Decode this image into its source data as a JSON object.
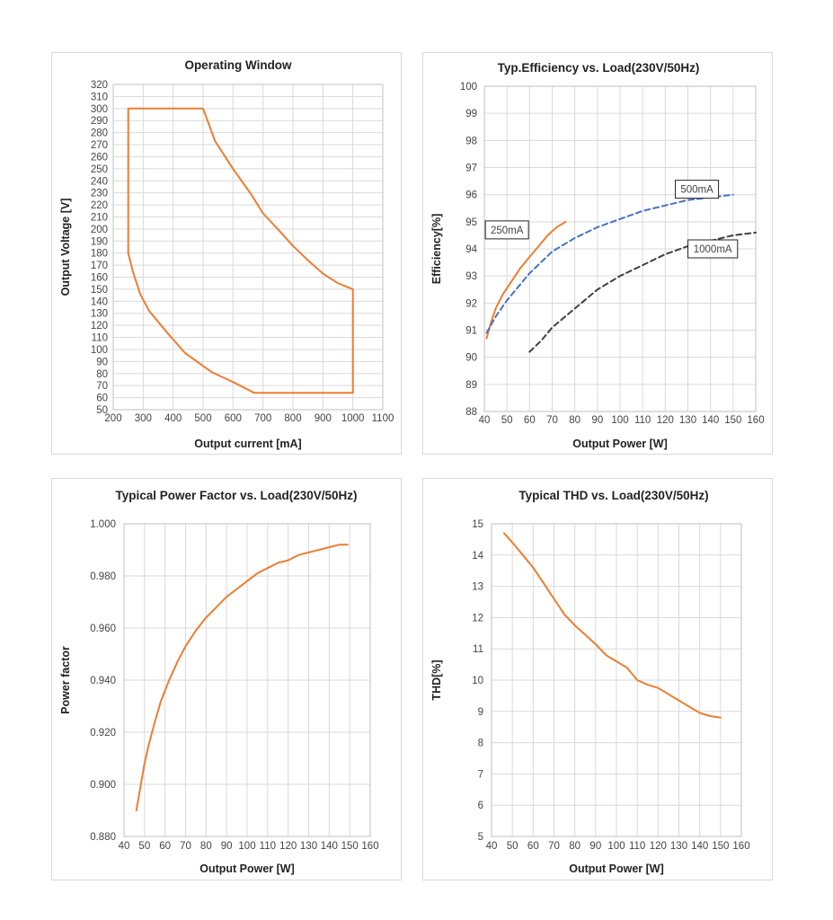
{
  "chart_data": [
    {
      "type": "line",
      "title": "Operating Window",
      "xlabel": "Output current [mA]",
      "ylabel": "Output Voltage [V]",
      "xlim": [
        200,
        1100
      ],
      "ylim": [
        50,
        320
      ],
      "xticks": [
        200,
        300,
        400,
        500,
        600,
        700,
        800,
        900,
        1000,
        1100
      ],
      "yticks": [
        50,
        60,
        70,
        80,
        90,
        100,
        110,
        120,
        130,
        140,
        150,
        160,
        170,
        180,
        190,
        200,
        210,
        220,
        230,
        240,
        250,
        260,
        270,
        280,
        290,
        300,
        310,
        320
      ],
      "grid": true,
      "series": [
        {
          "color": "#ED7D31",
          "dash": "solid",
          "x": [
            250,
            500,
            540,
            600,
            660,
            700,
            760,
            800,
            850,
            900,
            950,
            1000,
            1000,
            670,
            600,
            530,
            440,
            380,
            320,
            290,
            265,
            250,
            250
          ],
          "y": [
            300,
            300,
            273,
            250,
            229,
            213,
            197,
            186,
            174,
            163,
            155,
            150,
            64,
            64,
            73,
            81,
            97,
            114,
            132,
            146,
            165,
            180,
            300
          ]
        }
      ]
    },
    {
      "type": "line",
      "title": "Typ.Efficiency vs. Load(230V/50Hz)",
      "xlabel": "Output Power [W]",
      "ylabel": "Efficiency[%]",
      "xlim": [
        40,
        160
      ],
      "ylim": [
        88,
        100
      ],
      "xticks": [
        40,
        50,
        60,
        70,
        80,
        90,
        100,
        110,
        120,
        130,
        140,
        150,
        160
      ],
      "yticks": [
        88,
        89,
        90,
        91,
        92,
        93,
        94,
        95,
        96,
        97,
        98,
        99,
        100
      ],
      "grid": true,
      "series": [
        {
          "name": "250mA",
          "color": "#ED7D31",
          "dash": "solid",
          "x": [
            41,
            43,
            45,
            48,
            52,
            56,
            60,
            64,
            68,
            72,
            76
          ],
          "y": [
            90.7,
            91.3,
            91.8,
            92.3,
            92.8,
            93.3,
            93.7,
            94.1,
            94.5,
            94.8,
            95.0
          ]
        },
        {
          "name": "500mA",
          "color": "#4472C4",
          "dash": "dashed",
          "x": [
            41,
            45,
            50,
            55,
            60,
            65,
            70,
            80,
            90,
            100,
            110,
            120,
            130,
            140,
            150
          ],
          "y": [
            90.9,
            91.5,
            92.1,
            92.6,
            93.1,
            93.5,
            93.9,
            94.4,
            94.8,
            95.1,
            95.4,
            95.6,
            95.8,
            95.9,
            96.0
          ]
        },
        {
          "name": "1000mA",
          "color": "#404040",
          "dash": "dashed",
          "x": [
            60,
            65,
            70,
            80,
            90,
            100,
            110,
            120,
            130,
            140,
            150,
            160
          ],
          "y": [
            90.2,
            90.6,
            91.1,
            91.8,
            92.5,
            93.0,
            93.4,
            93.8,
            94.1,
            94.3,
            94.5,
            94.6
          ]
        }
      ],
      "annotations": [
        {
          "text": "250mA",
          "x": 50,
          "y": 94.7
        },
        {
          "text": "500mA",
          "x": 134,
          "y": 96.2
        },
        {
          "text": "1000mA",
          "x": 141,
          "y": 94.0
        }
      ]
    },
    {
      "type": "line",
      "title": "Typical Power Factor vs. Load(230V/50Hz)",
      "xlabel": "Output Power [W]",
      "ylabel": "Power factor",
      "xlim": [
        40,
        160
      ],
      "ylim": [
        0.88,
        1.0
      ],
      "xticks": [
        40,
        50,
        60,
        70,
        80,
        90,
        100,
        110,
        120,
        130,
        140,
        150,
        160
      ],
      "yticks": [
        "0.880",
        "0.900",
        "0.920",
        "0.940",
        "0.960",
        "0.980",
        "1.000"
      ],
      "grid": true,
      "series": [
        {
          "color": "#ED7D31",
          "dash": "solid",
          "x": [
            46,
            48,
            50,
            52,
            55,
            58,
            62,
            66,
            70,
            75,
            80,
            85,
            90,
            95,
            100,
            105,
            110,
            115,
            120,
            125,
            130,
            135,
            140,
            145,
            149
          ],
          "y": [
            0.89,
            0.899,
            0.908,
            0.915,
            0.924,
            0.932,
            0.94,
            0.947,
            0.953,
            0.959,
            0.964,
            0.968,
            0.972,
            0.975,
            0.978,
            0.981,
            0.983,
            0.985,
            0.986,
            0.988,
            0.989,
            0.99,
            0.991,
            0.992,
            0.992
          ]
        }
      ]
    },
    {
      "type": "line",
      "title": "Typical THD vs. Load(230V/50Hz)",
      "xlabel": "Output Power [W]",
      "ylabel": "THD[%]",
      "xlim": [
        40,
        160
      ],
      "ylim": [
        5,
        15
      ],
      "xticks": [
        40,
        50,
        60,
        70,
        80,
        90,
        100,
        110,
        120,
        130,
        140,
        150,
        160
      ],
      "yticks": [
        5,
        6,
        7,
        8,
        9,
        10,
        11,
        12,
        13,
        14,
        15
      ],
      "grid": true,
      "series": [
        {
          "color": "#ED7D31",
          "dash": "solid",
          "x": [
            46,
            50,
            55,
            60,
            65,
            70,
            75,
            80,
            85,
            90,
            95,
            100,
            105,
            110,
            115,
            120,
            125,
            130,
            135,
            140,
            145,
            150
          ],
          "y": [
            14.7,
            14.4,
            14.0,
            13.6,
            13.1,
            12.6,
            12.1,
            11.75,
            11.45,
            11.15,
            10.8,
            10.6,
            10.4,
            10.0,
            9.85,
            9.75,
            9.55,
            9.35,
            9.15,
            8.95,
            8.85,
            8.8
          ]
        }
      ]
    }
  ]
}
